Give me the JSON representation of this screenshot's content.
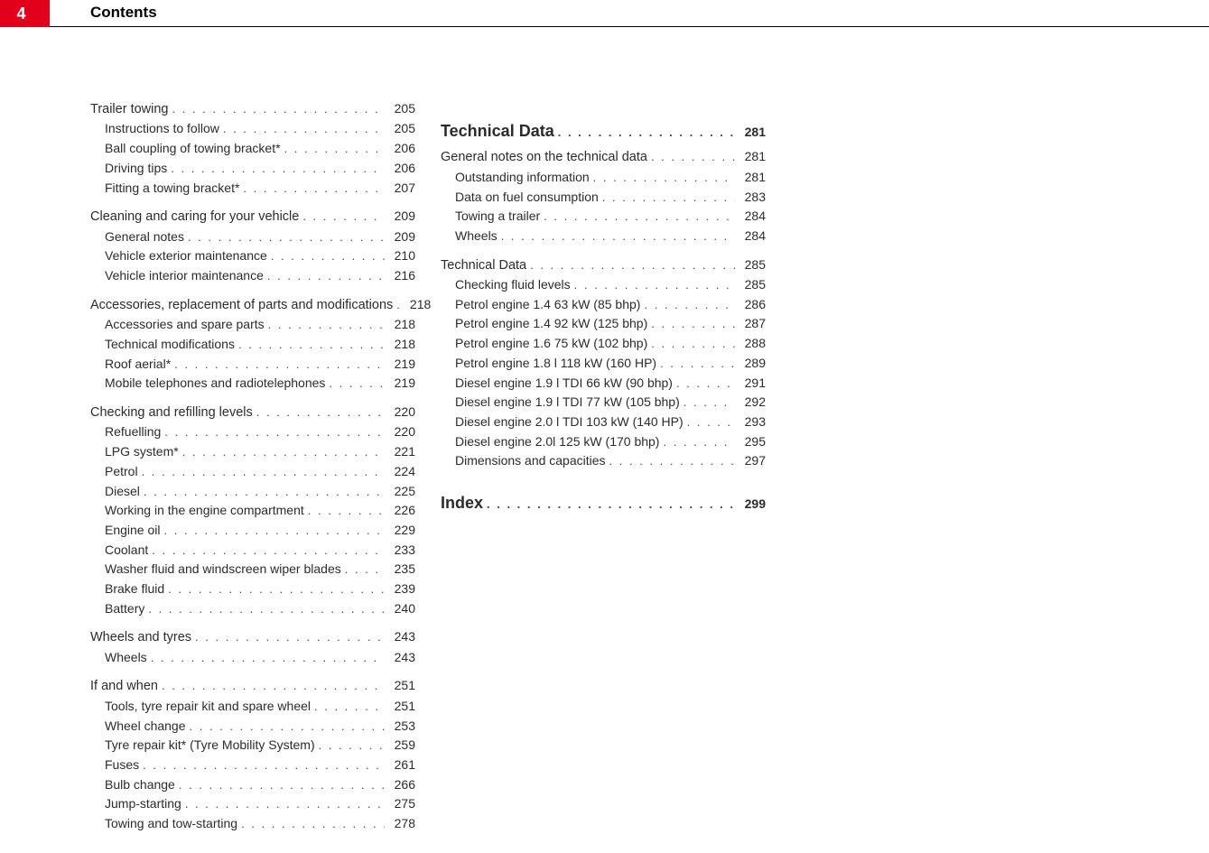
{
  "header": {
    "page_number": "4",
    "title": "Contents"
  },
  "columns": [
    [
      {
        "type": "section",
        "label": "Trailer towing",
        "page": "205",
        "first": true
      },
      {
        "type": "sub",
        "label": "Instructions to follow",
        "page": "205"
      },
      {
        "type": "sub",
        "label": "Ball coupling of towing bracket*",
        "page": "206"
      },
      {
        "type": "sub",
        "label": "Driving tips",
        "page": "206"
      },
      {
        "type": "sub",
        "label": "Fitting a towing bracket*",
        "page": "207"
      },
      {
        "type": "section",
        "label": "Cleaning and caring for your vehicle",
        "page": "209"
      },
      {
        "type": "sub",
        "label": "General notes",
        "page": "209"
      },
      {
        "type": "sub",
        "label": "Vehicle exterior maintenance",
        "page": "210"
      },
      {
        "type": "sub",
        "label": "Vehicle interior maintenance",
        "page": "216"
      },
      {
        "type": "section",
        "label": "Accessories, replacement of parts and modifications",
        "page": "218",
        "wrap": true
      },
      {
        "type": "sub",
        "label": "Accessories and spare parts",
        "page": "218"
      },
      {
        "type": "sub",
        "label": "Technical modifications",
        "page": "218"
      },
      {
        "type": "sub",
        "label": "Roof aerial*",
        "page": "219"
      },
      {
        "type": "sub",
        "label": "Mobile telephones and radiotelephones",
        "page": "219"
      },
      {
        "type": "section",
        "label": "Checking and refilling levels",
        "page": "220"
      },
      {
        "type": "sub",
        "label": "Refuelling",
        "page": "220"
      },
      {
        "type": "sub",
        "label": "LPG system*",
        "page": "221"
      },
      {
        "type": "sub",
        "label": "Petrol",
        "page": "224"
      },
      {
        "type": "sub",
        "label": "Diesel",
        "page": "225"
      },
      {
        "type": "sub",
        "label": "Working in the engine compartment",
        "page": "226"
      },
      {
        "type": "sub",
        "label": "Engine oil",
        "page": "229"
      },
      {
        "type": "sub",
        "label": "Coolant",
        "page": "233"
      },
      {
        "type": "sub",
        "label": "Washer fluid and windscreen wiper blades",
        "page": "235"
      },
      {
        "type": "sub",
        "label": "Brake fluid",
        "page": "239"
      },
      {
        "type": "sub",
        "label": "Battery",
        "page": "240"
      },
      {
        "type": "section",
        "label": "Wheels and tyres",
        "page": "243"
      },
      {
        "type": "sub",
        "label": "Wheels",
        "page": "243"
      },
      {
        "type": "section",
        "label": "If and when",
        "page": "251"
      },
      {
        "type": "sub",
        "label": "Tools, tyre repair kit and spare wheel",
        "page": "251"
      },
      {
        "type": "sub",
        "label": "Wheel change",
        "page": "253"
      },
      {
        "type": "sub",
        "label": "Tyre repair kit* (Tyre Mobility System)",
        "page": "259"
      },
      {
        "type": "sub",
        "label": "Fuses",
        "page": "261"
      },
      {
        "type": "sub",
        "label": "Bulb change",
        "page": "266"
      },
      {
        "type": "sub",
        "label": "Jump-starting",
        "page": "275"
      },
      {
        "type": "sub",
        "label": "Towing and tow-starting",
        "page": "278"
      }
    ],
    [
      {
        "type": "chapter",
        "label": "Technical Data",
        "page": "281"
      },
      {
        "type": "section",
        "label": "General notes on the technical data",
        "page": "281"
      },
      {
        "type": "sub",
        "label": "Outstanding information",
        "page": "281"
      },
      {
        "type": "sub",
        "label": "Data on fuel consumption",
        "page": "283"
      },
      {
        "type": "sub",
        "label": "Towing a trailer",
        "page": "284"
      },
      {
        "type": "sub",
        "label": "Wheels",
        "page": "284"
      },
      {
        "type": "section",
        "label": "Technical Data",
        "page": "285"
      },
      {
        "type": "sub",
        "label": "Checking fluid levels",
        "page": "285"
      },
      {
        "type": "sub",
        "label": "Petrol engine 1.4 63 kW (85 bhp)",
        "page": "286"
      },
      {
        "type": "sub",
        "label": "Petrol engine 1.4 92 kW (125 bhp)",
        "page": "287"
      },
      {
        "type": "sub",
        "label": "Petrol engine 1.6 75 kW (102 bhp)",
        "page": "288"
      },
      {
        "type": "sub",
        "label": "Petrol engine 1.8 l 118 kW (160 HP)",
        "page": "289"
      },
      {
        "type": "sub",
        "label": "Diesel engine 1.9 l TDI 66 kW (90 bhp)",
        "page": "291"
      },
      {
        "type": "sub",
        "label": "Diesel engine 1.9 l TDI 77 kW (105 bhp)",
        "page": "292"
      },
      {
        "type": "sub",
        "label": "Diesel engine 2.0 l TDI 103 kW (140 HP)",
        "page": "293"
      },
      {
        "type": "sub",
        "label": "Diesel engine 2.0l 125 kW (170 bhp)",
        "page": "295"
      },
      {
        "type": "sub",
        "label": "Dimensions and capacities",
        "page": "297"
      },
      {
        "type": "chapter",
        "label": "Index",
        "page": "299"
      }
    ]
  ]
}
